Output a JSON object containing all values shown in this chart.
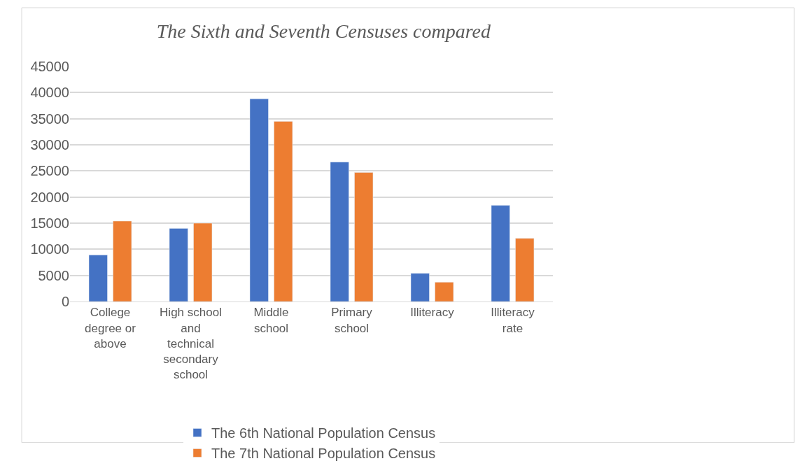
{
  "chart_data": {
    "type": "bar",
    "title": "The Sixth and Seventh Censuses compared",
    "categories": [
      "College degree or above",
      "High school and technical secondary school",
      "Middle school",
      "Primary school",
      "Illiteracy",
      "Illiteracy rate"
    ],
    "series": [
      {
        "name": "The 6th National Population Census",
        "color": "#4472c4",
        "values": [
          8900,
          14000,
          38800,
          26700,
          5400,
          18400
        ]
      },
      {
        "name": "The 7th National Population Census",
        "color": "#ed7d31",
        "values": [
          15400,
          15000,
          34500,
          24700,
          3700,
          12100
        ]
      }
    ],
    "ylim": [
      0,
      45000
    ],
    "yticks": [
      0,
      5000,
      10000,
      15000,
      20000,
      25000,
      30000,
      35000,
      40000,
      45000
    ],
    "grid": "y",
    "legend": "bottom"
  }
}
